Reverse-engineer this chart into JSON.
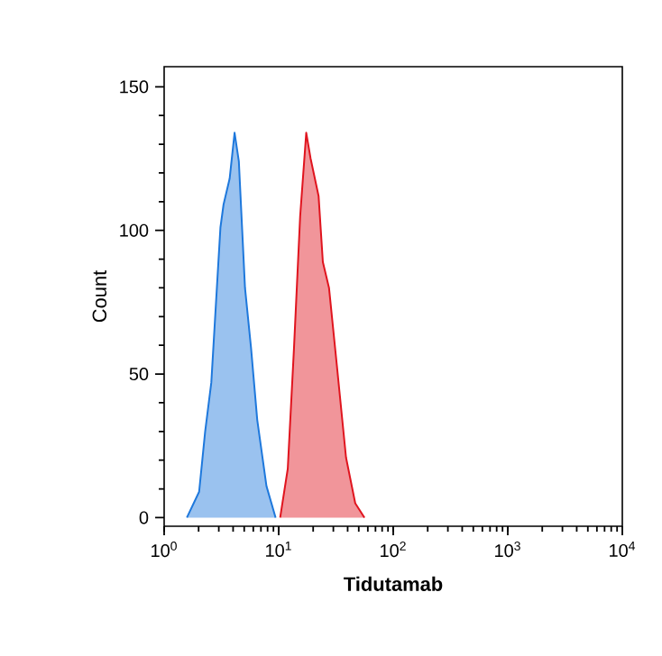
{
  "chart_data": {
    "type": "area",
    "xlabel": "Tidutamab",
    "ylabel": "Count",
    "log": "x",
    "xlim": [
      1,
      10000
    ],
    "ylim": [
      -3,
      157
    ],
    "xticks": [
      {
        "value": 1,
        "label": "10$^{0}$"
      },
      {
        "value": 10,
        "label": "10$^{1}$"
      },
      {
        "value": 100,
        "label": "10$^{2}$"
      },
      {
        "value": 1000,
        "label": "10$^{3}$"
      },
      {
        "value": 10000,
        "label": "10$^{4}$"
      }
    ],
    "yticks": [
      0,
      50,
      100,
      150
    ],
    "series": [
      {
        "color": "#1e78dc",
        "x": [
          1.58,
          2.02,
          2.28,
          2.58,
          3.1,
          3.3,
          3.73,
          4.12,
          4.49,
          5.08,
          5.74,
          6.5,
          7.82,
          9.4
        ],
        "values": [
          0,
          9,
          30,
          47,
          101,
          109,
          118,
          134,
          124,
          80,
          59,
          34,
          11,
          0
        ]
      },
      {
        "color": "#e0141e",
        "x": [
          10.3,
          12.0,
          13.6,
          15.4,
          17.4,
          19.0,
          22.3,
          24.3,
          27.5,
          32.2,
          38.7,
          46.6,
          56.1
        ],
        "values": [
          0,
          17,
          59,
          105,
          134,
          125,
          112,
          89,
          80,
          53,
          21,
          5,
          0
        ]
      }
    ]
  }
}
